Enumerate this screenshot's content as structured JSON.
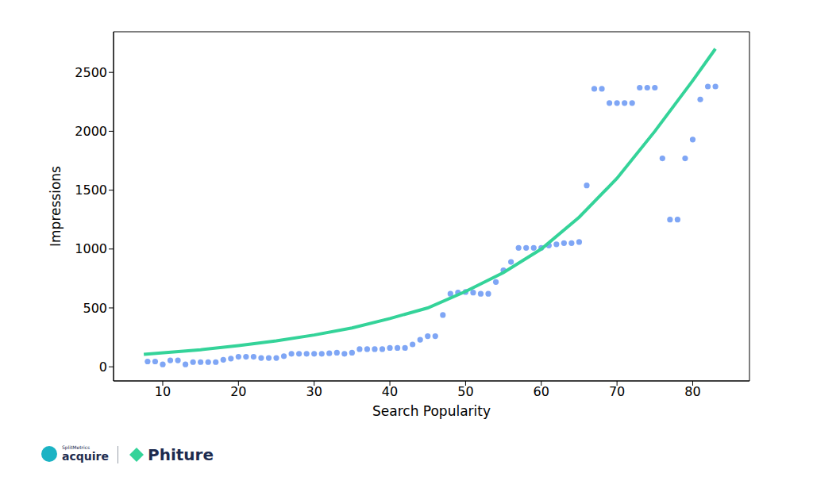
{
  "chart_data": {
    "type": "scatter",
    "x_label": "Search Popularity",
    "y_label": "Impressions",
    "xlim": [
      3.5,
      87.5
    ],
    "xticks": [
      10,
      20,
      30,
      40,
      50,
      60,
      70,
      80
    ],
    "ylim": [
      -120,
      2845
    ],
    "yticks": [
      0,
      500,
      1000,
      1500,
      2000,
      2500
    ],
    "grid": false,
    "annotations": [
      "SplitMetrics",
      "acquire",
      "Phiture"
    ],
    "series": [
      {
        "type": "scatter",
        "color": "#7fa6f5",
        "marker": "circle",
        "x": [
          8,
          9,
          10,
          11,
          12,
          13,
          14,
          15,
          16,
          17,
          18,
          19,
          20,
          21,
          22,
          23,
          24,
          25,
          26,
          27,
          28,
          29,
          30,
          31,
          32,
          33,
          34,
          35,
          36,
          37,
          38,
          39,
          40,
          41,
          42,
          43,
          44,
          45,
          46,
          47,
          48,
          49,
          50,
          51,
          52,
          53,
          54,
          55,
          56,
          57,
          58,
          59,
          60,
          61,
          62,
          63,
          64,
          65,
          66,
          67,
          68,
          69,
          70,
          71,
          72,
          73,
          74,
          75,
          76,
          77,
          78,
          79,
          80,
          81,
          82,
          83
        ],
        "values": [
          45,
          45,
          20,
          55,
          55,
          20,
          40,
          40,
          40,
          40,
          60,
          70,
          85,
          85,
          85,
          75,
          75,
          75,
          90,
          110,
          110,
          110,
          110,
          110,
          115,
          120,
          110,
          120,
          150,
          150,
          150,
          150,
          160,
          160,
          160,
          190,
          230,
          260,
          260,
          440,
          620,
          630,
          635,
          630,
          620,
          620,
          720,
          820,
          890,
          1010,
          1010,
          1010,
          1010,
          1030,
          1040,
          1050,
          1050,
          1060,
          1540,
          2360,
          2360,
          2240,
          2240,
          2240,
          2240,
          2370,
          2370,
          2370,
          1770,
          1250,
          1250,
          1770,
          1930,
          2270,
          2380,
          2380
        ]
      },
      {
        "type": "line",
        "color": "#34d399",
        "x": [
          7.5,
          15,
          20,
          25,
          30,
          35,
          40,
          45,
          50,
          55,
          60,
          65,
          70,
          75,
          80,
          83
        ],
        "values": [
          105,
          145,
          180,
          220,
          270,
          330,
          410,
          500,
          640,
          800,
          1000,
          1270,
          1600,
          2000,
          2430,
          2700
        ]
      }
    ]
  }
}
